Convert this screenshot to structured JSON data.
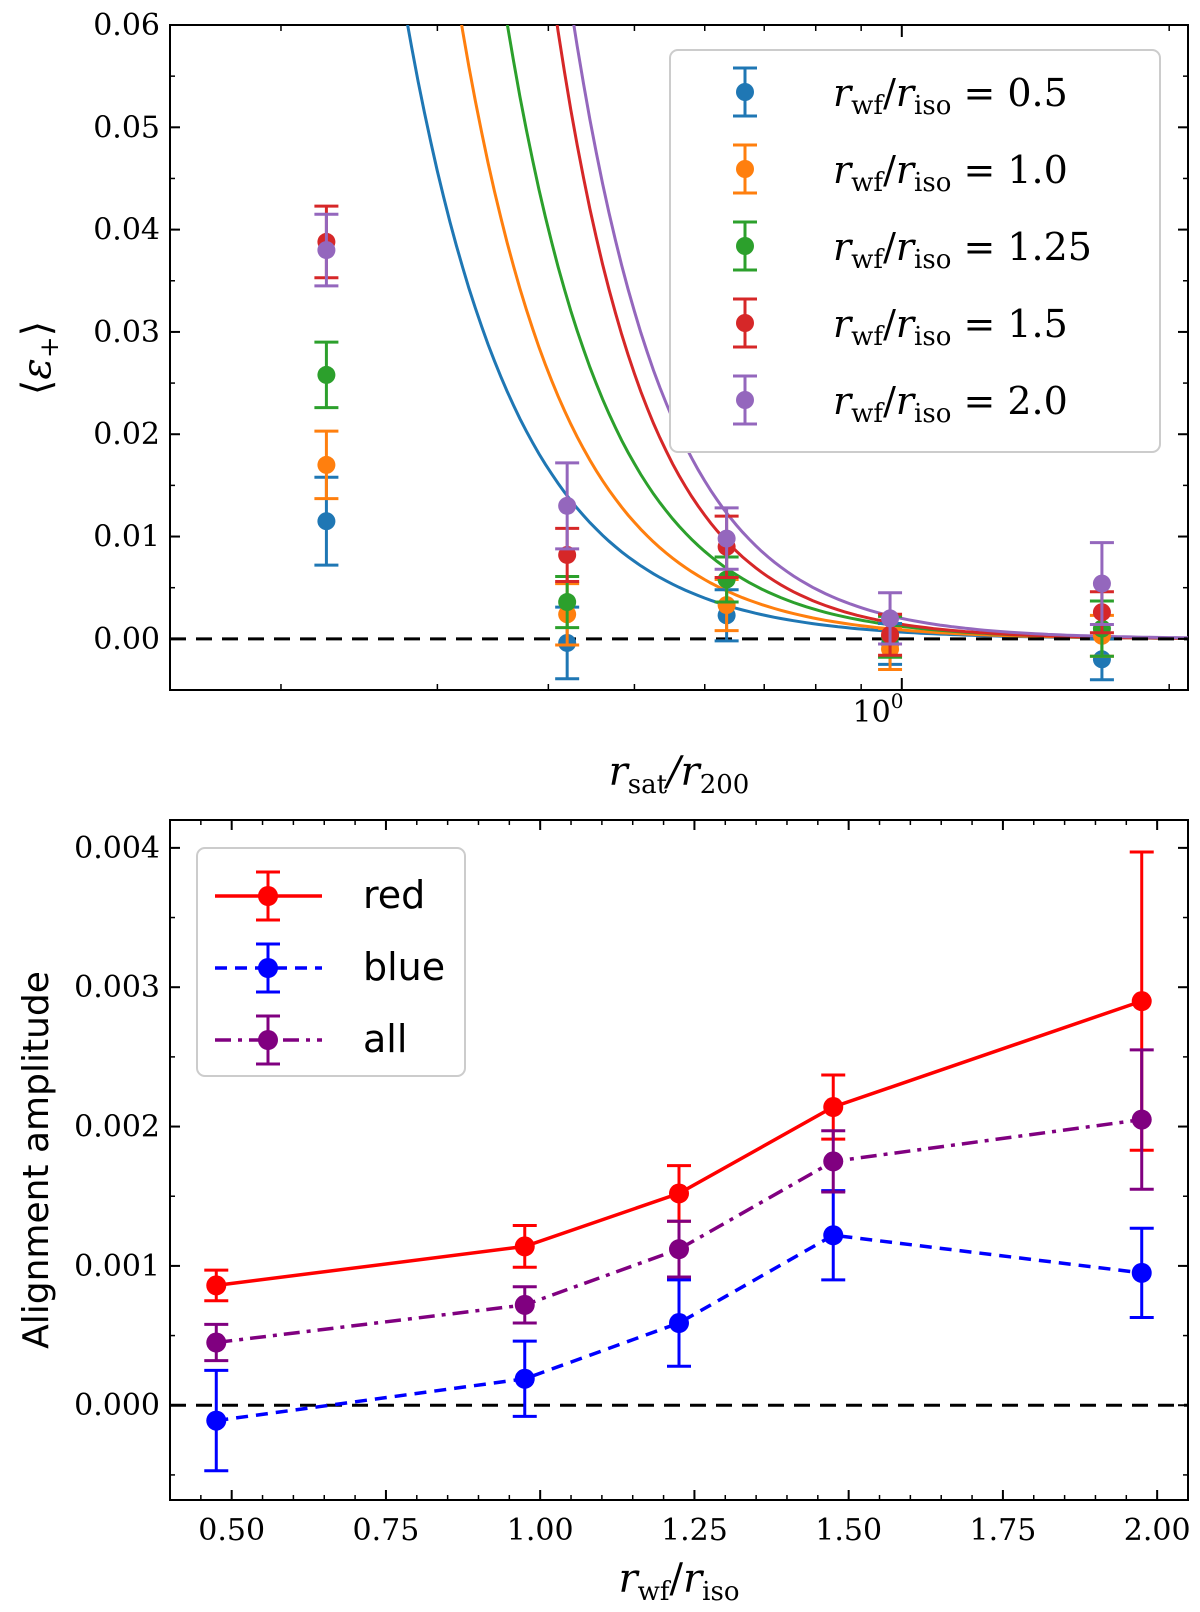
{
  "chart_data": [
    {
      "type": "scatter",
      "xlabel": "r_sat/r_200",
      "ylabel": "⟨ε₊⟩",
      "xscale": "log",
      "xlim": [
        0.15,
        2.1
      ],
      "ylim": [
        -0.005,
        0.06
      ],
      "yticks": [
        "0.00",
        "0.01",
        "0.02",
        "0.03",
        "0.04",
        "0.05",
        "0.06"
      ],
      "xtick_major": "10^0",
      "grid": false,
      "legend_placement": "top-right",
      "reference_line": {
        "y": 0.0,
        "style": "dashed",
        "color": "#000000"
      },
      "series": [
        {
          "name": "r_wf/r_iso = 0.5",
          "color": "#1f77b4",
          "x": [
            0.225,
            0.42,
            0.635,
            0.97,
            1.68
          ],
          "y": [
            0.0115,
            -0.0004,
            0.0023,
            -0.0005,
            -0.002
          ],
          "err": [
            0.0043,
            0.0035,
            0.0025,
            0.002,
            0.002
          ],
          "fit": {
            "A": 0.00066,
            "b": 3.52
          }
        },
        {
          "name": "r_wf/r_iso = 1.0",
          "color": "#ff7f0e",
          "x": [
            0.225,
            0.42,
            0.635,
            0.97,
            1.68
          ],
          "y": [
            0.017,
            0.0024,
            0.0033,
            -0.001,
            0.0003
          ],
          "err": [
            0.0033,
            0.003,
            0.0025,
            0.002,
            0.002
          ],
          "fit": {
            "A": 0.00087,
            "b": 3.71
          }
        },
        {
          "name": "r_wf/r_iso = 1.25",
          "color": "#2ca02c",
          "x": [
            0.225,
            0.42,
            0.635,
            0.97,
            1.68
          ],
          "y": [
            0.0258,
            0.0036,
            0.0058,
            0.0002,
            0.001
          ],
          "err": [
            0.0032,
            0.0025,
            0.0022,
            0.002,
            0.0027
          ],
          "fit": {
            "A": 0.00122,
            "b": 3.81
          }
        },
        {
          "name": "r_wf/r_iso = 1.5",
          "color": "#d62728",
          "x": [
            0.225,
            0.42,
            0.635,
            0.97,
            1.68
          ],
          "y": [
            0.0388,
            0.0082,
            0.009,
            0.0004,
            0.0026
          ],
          "err": [
            0.0035,
            0.0026,
            0.003,
            0.002,
            0.002
          ],
          "fit": {
            "A": 0.00142,
            "b": 4.19
          }
        },
        {
          "name": "r_wf/r_iso = 2.0",
          "color": "#9467bd",
          "x": [
            0.225,
            0.42,
            0.635,
            0.97,
            1.68
          ],
          "y": [
            0.038,
            0.013,
            0.0098,
            0.002,
            0.0054
          ],
          "err": [
            0.0035,
            0.0042,
            0.003,
            0.0025,
            0.004
          ],
          "fit": {
            "A": 0.002,
            "b": 4.0
          }
        }
      ]
    },
    {
      "type": "line",
      "xlabel": "r_wf/r_iso",
      "ylabel": "Alignment amplitude",
      "xlim": [
        0.4,
        2.05
      ],
      "ylim": [
        -0.00068,
        0.0042
      ],
      "xticks": [
        "0.50",
        "0.75",
        "1.00",
        "1.25",
        "1.50",
        "1.75",
        "2.00"
      ],
      "yticks": [
        "0.000",
        "0.001",
        "0.002",
        "0.003",
        "0.004"
      ],
      "grid": false,
      "legend_placement": "top-left",
      "reference_line": {
        "y": 0.0,
        "style": "dashed",
        "color": "#000000"
      },
      "series": [
        {
          "name": "red",
          "color": "#ff0000",
          "linestyle": "solid",
          "x": [
            0.475,
            0.975,
            1.225,
            1.475,
            1.975
          ],
          "y": [
            0.00086,
            0.00114,
            0.00152,
            0.00214,
            0.0029
          ],
          "err": [
            0.00011,
            0.00015,
            0.0002,
            0.00023,
            0.00107
          ]
        },
        {
          "name": "blue",
          "color": "#0000ff",
          "linestyle": "dashed",
          "x": [
            0.475,
            0.975,
            1.225,
            1.475,
            1.975
          ],
          "y": [
            -0.00011,
            0.00019,
            0.00059,
            0.00122,
            0.00095
          ],
          "err": [
            0.00036,
            0.00027,
            0.00031,
            0.00032,
            0.00032
          ]
        },
        {
          "name": "all",
          "color": "#800080",
          "linestyle": "dashdot",
          "x": [
            0.475,
            0.975,
            1.225,
            1.475,
            1.975
          ],
          "y": [
            0.00045,
            0.00072,
            0.00112,
            0.00175,
            0.00205
          ],
          "err": [
            0.00013,
            0.00013,
            0.0002,
            0.00022,
            0.0005
          ]
        }
      ]
    }
  ]
}
